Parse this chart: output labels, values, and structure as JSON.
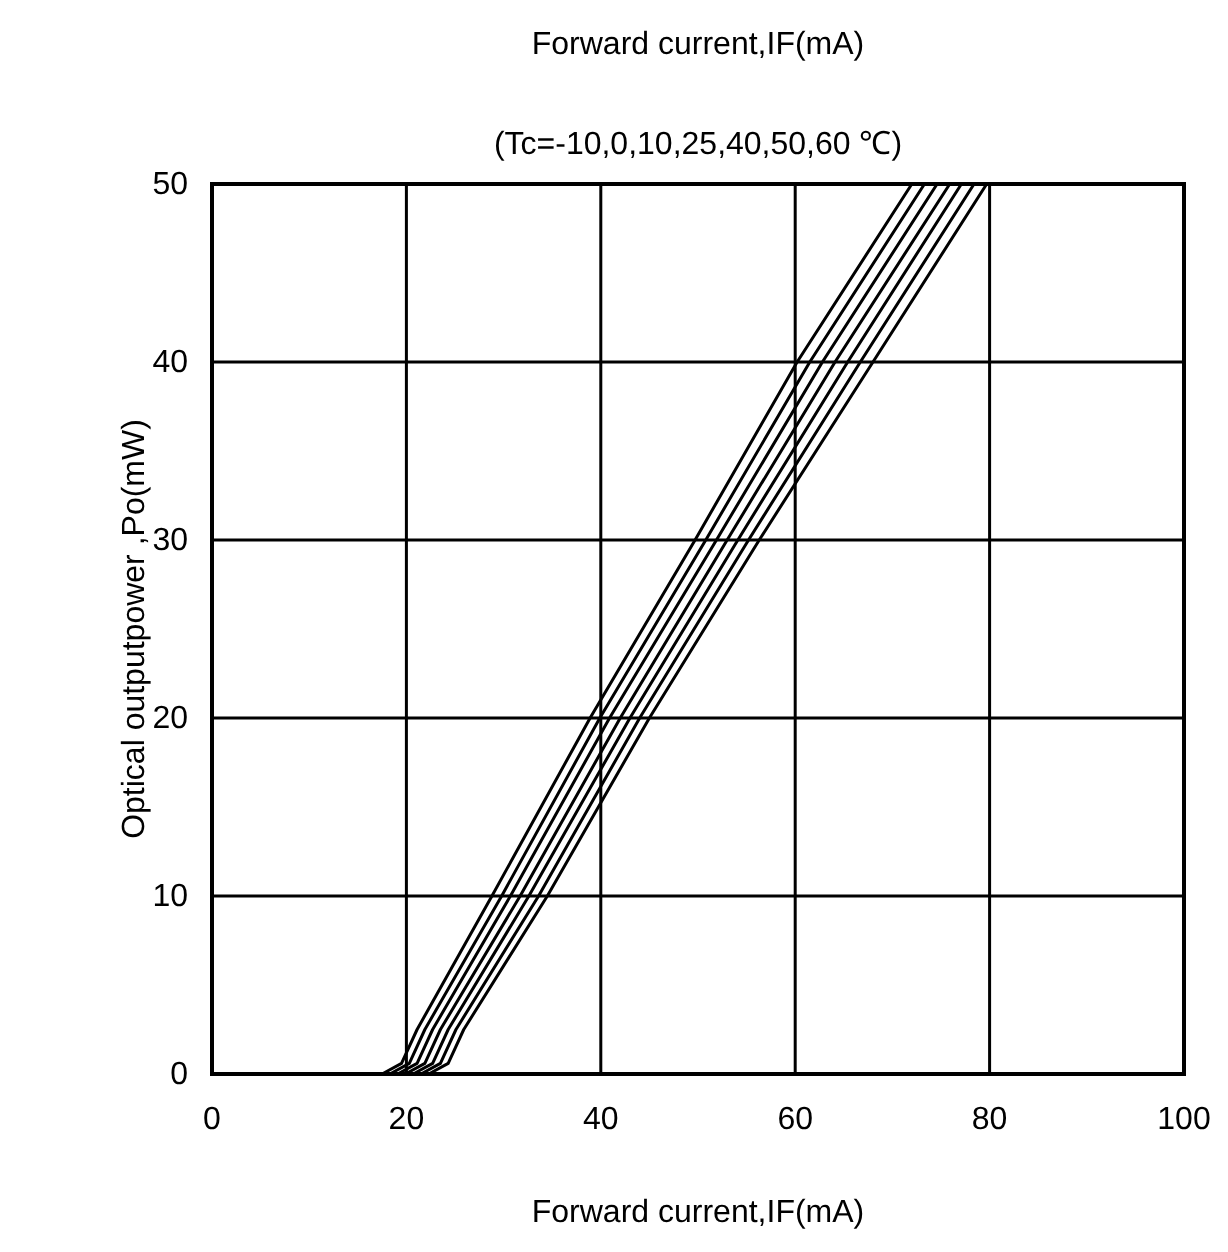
{
  "chart_data": {
    "type": "line",
    "title": "Forward current,IF(mA)",
    "subtitle": "(Tc=-10,0,10,25,40,50,60 ℃)",
    "xlabel": "Forward current,IF(mA)",
    "ylabel": "Optical outputpower ,Po(mW)",
    "xlim": [
      0,
      100
    ],
    "xticks": [
      0,
      20,
      40,
      60,
      80,
      100
    ],
    "ylim": [
      0,
      50
    ],
    "yticks": [
      0,
      10,
      20,
      30,
      40,
      50
    ],
    "grid": true,
    "marker": "none",
    "line_style": "solid",
    "series": [
      {
        "color": "#000000",
        "x": [
          0,
          17.5,
          19.5,
          21.1,
          28.8,
          38.9,
          49.7,
          60.2,
          72.0
        ],
        "values": [
          0,
          0,
          0.6,
          2.5,
          10,
          20,
          30,
          40,
          50
        ]
      },
      {
        "color": "#000000",
        "x": [
          0,
          18.3,
          20.3,
          21.9,
          29.8,
          39.9,
          50.8,
          61.5,
          73.3
        ],
        "values": [
          0,
          0,
          0.6,
          2.5,
          10,
          20,
          30,
          40,
          50
        ]
      },
      {
        "color": "#000000",
        "x": [
          0,
          19.1,
          21.1,
          22.7,
          30.7,
          40.9,
          51.9,
          62.8,
          74.6
        ],
        "values": [
          0,
          0,
          0.6,
          2.5,
          10,
          20,
          30,
          40,
          50
        ]
      },
      {
        "color": "#000000",
        "x": [
          0,
          19.9,
          21.9,
          23.5,
          31.7,
          42.0,
          53.0,
          64.1,
          75.9
        ],
        "values": [
          0,
          0,
          0.6,
          2.5,
          10,
          20,
          30,
          40,
          50
        ]
      },
      {
        "color": "#000000",
        "x": [
          0,
          20.7,
          22.7,
          24.3,
          32.6,
          43.0,
          54.1,
          65.4,
          77.1
        ],
        "values": [
          0,
          0,
          0.6,
          2.5,
          10,
          20,
          30,
          40,
          50
        ]
      },
      {
        "color": "#000000",
        "x": [
          0,
          21.5,
          23.5,
          25.1,
          33.6,
          44.0,
          55.2,
          66.7,
          78.4
        ],
        "values": [
          0,
          0,
          0.6,
          2.5,
          10,
          20,
          30,
          40,
          50
        ]
      },
      {
        "color": "#000000",
        "x": [
          0,
          22.3,
          24.3,
          25.9,
          34.5,
          45.0,
          56.3,
          68.0,
          79.7
        ],
        "values": [
          0,
          0,
          0.6,
          2.5,
          10,
          20,
          30,
          40,
          50
        ]
      }
    ]
  }
}
